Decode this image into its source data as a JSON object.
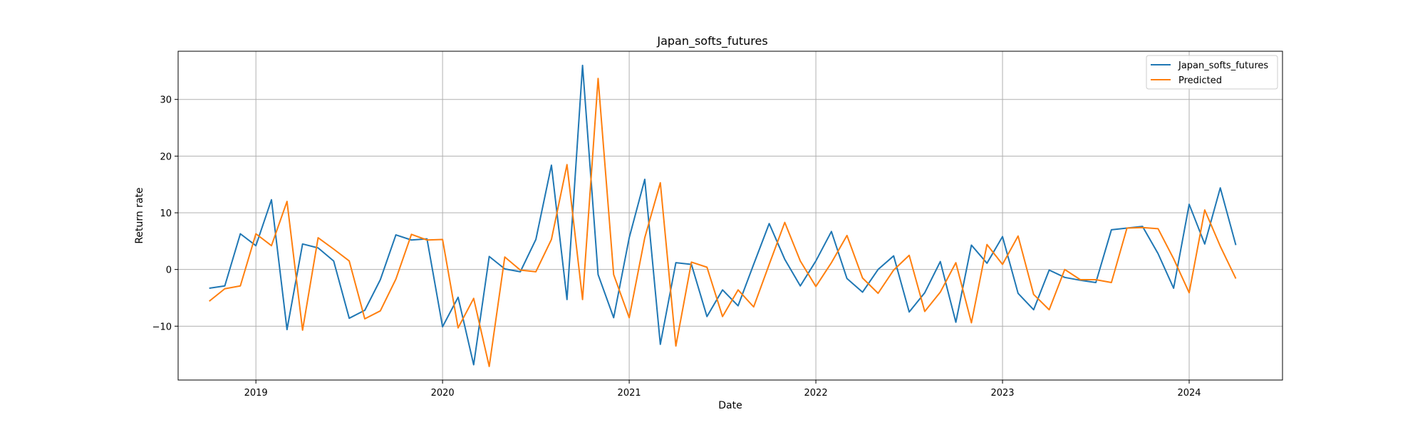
{
  "chart_data": {
    "type": "line",
    "title": "Japan_softs_futures",
    "xlabel": "Date",
    "ylabel": "Return rate",
    "x_ticks": [
      "2019",
      "2020",
      "2021",
      "2022",
      "2023",
      "2024"
    ],
    "y_ticks": [
      -10,
      0,
      10,
      20,
      30
    ],
    "xlim": [
      "2018-08-01",
      "2024-07-01"
    ],
    "ylim": [
      -19.5,
      38.5
    ],
    "grid": true,
    "legend_position": "top-right",
    "x": [
      "2018-10",
      "2018-11",
      "2018-12",
      "2019-01",
      "2019-02",
      "2019-03",
      "2019-04",
      "2019-05",
      "2019-06",
      "2019-07",
      "2019-08",
      "2019-09",
      "2019-10",
      "2019-11",
      "2019-12",
      "2020-01",
      "2020-02",
      "2020-03",
      "2020-04",
      "2020-05",
      "2020-06",
      "2020-07",
      "2020-08",
      "2020-09",
      "2020-10",
      "2020-11",
      "2020-12",
      "2021-01",
      "2021-02",
      "2021-03",
      "2021-04",
      "2021-05",
      "2021-06",
      "2021-07",
      "2021-08",
      "2021-09",
      "2021-10",
      "2021-11",
      "2021-12",
      "2022-01",
      "2022-02",
      "2022-03",
      "2022-04",
      "2022-05",
      "2022-06",
      "2022-07",
      "2022-08",
      "2022-09",
      "2022-10",
      "2022-11",
      "2022-12",
      "2023-01",
      "2023-02",
      "2023-03",
      "2023-04",
      "2023-05",
      "2023-06",
      "2023-07",
      "2023-08",
      "2023-09",
      "2023-10",
      "2023-11",
      "2023-12",
      "2024-01",
      "2024-02",
      "2024-03",
      "2024-04"
    ],
    "series": [
      {
        "name": "Japan_softs_futures",
        "color": "#1f77b4",
        "values": [
          -3.3,
          -2.9,
          6.3,
          4.2,
          12.3,
          -10.6,
          4.5,
          3.8,
          1.5,
          -8.6,
          -7.2,
          -1.8,
          6.1,
          5.2,
          5.4,
          -10.1,
          -4.9,
          -16.8,
          2.3,
          0.1,
          -0.4,
          5.3,
          18.4,
          -5.3,
          36.0,
          -0.9,
          -8.5,
          5.6,
          15.9,
          -13.2,
          1.2,
          0.9,
          -8.3,
          -3.6,
          -6.4,
          0.9,
          8.1,
          1.8,
          -2.9,
          1.5,
          6.7,
          -1.6,
          -4.0,
          0.0,
          2.4,
          -7.5,
          -4.1,
          1.4,
          -9.3,
          4.3,
          1.1,
          5.8,
          -4.2,
          -7.1,
          -0.1,
          -1.4,
          -1.9,
          -2.3,
          7.0,
          7.3,
          7.6,
          2.8,
          -3.3,
          11.5,
          4.5,
          14.4,
          4.3
        ]
      },
      {
        "name": "Predicted",
        "color": "#ff7f0e",
        "values": [
          -5.6,
          -3.4,
          -2.9,
          6.3,
          4.2,
          12.0,
          -10.7,
          5.6,
          3.6,
          1.5,
          -8.7,
          -7.3,
          -1.7,
          6.2,
          5.2,
          5.3,
          -10.3,
          -5.1,
          -17.1,
          2.2,
          -0.1,
          -0.4,
          5.3,
          18.5,
          -5.3,
          33.7,
          -0.9,
          -8.5,
          5.6,
          15.3,
          -13.5,
          1.3,
          0.4,
          -8.3,
          -3.6,
          -6.6,
          0.9,
          8.3,
          1.5,
          -3.0,
          1.2,
          6.0,
          -1.5,
          -4.2,
          -0.1,
          2.5,
          -7.4,
          -4.0,
          1.2,
          -9.4,
          4.4,
          0.9,
          5.9,
          -4.4,
          -7.1,
          0.0,
          -1.8,
          -1.8,
          -2.3,
          7.3,
          7.4,
          7.2,
          1.9,
          -4.1,
          10.5,
          4.1,
          -1.6
        ]
      }
    ]
  }
}
